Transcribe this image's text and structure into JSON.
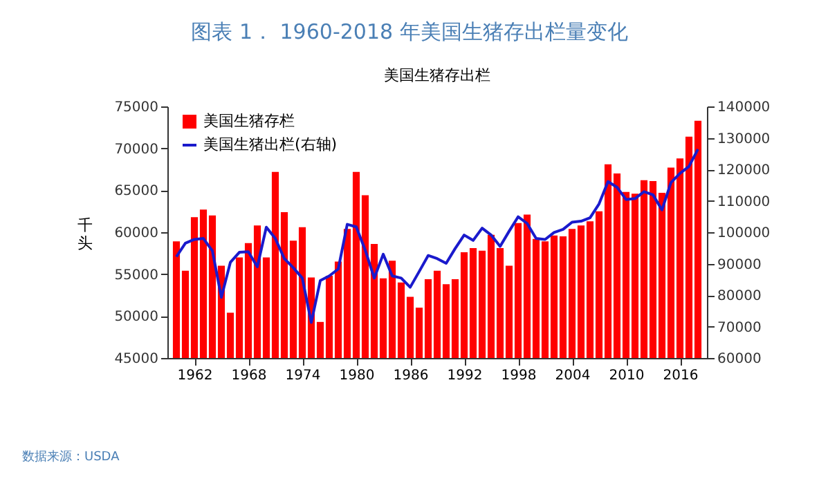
{
  "chart_data": {
    "type": "bar",
    "title": "图表 1． 1960-2018 年美国生猪存出栏量变化",
    "subtitle": "美国生猪存出栏",
    "ylabel": "千头",
    "annotations": [
      "数据来源：USDA"
    ],
    "x": [
      1960,
      1961,
      1962,
      1963,
      1964,
      1965,
      1966,
      1967,
      1968,
      1969,
      1970,
      1971,
      1972,
      1973,
      1974,
      1975,
      1976,
      1977,
      1978,
      1979,
      1980,
      1981,
      1982,
      1983,
      1984,
      1985,
      1986,
      1987,
      1988,
      1989,
      1990,
      1991,
      1992,
      1993,
      1994,
      1995,
      1996,
      1997,
      1998,
      1999,
      2000,
      2001,
      2002,
      2003,
      2004,
      2005,
      2006,
      2007,
      2008,
      2009,
      2010,
      2011,
      2012,
      2013,
      2014,
      2015,
      2016,
      2017,
      2018
    ],
    "series": [
      {
        "name": "美国生猪存栏",
        "color": "#ff0000",
        "values": [
          58900,
          55400,
          61800,
          62700,
          62000,
          56000,
          50400,
          57000,
          58700,
          60800,
          57000,
          67200,
          62400,
          59000,
          60600,
          54600,
          49300,
          54800,
          56500,
          60400,
          67200,
          64400,
          58600,
          54500,
          56600,
          54000,
          52300,
          51000,
          54400,
          55400,
          53800,
          54400,
          57600,
          58100,
          57800,
          59700,
          58100,
          56000,
          61100,
          62100,
          59200,
          58900,
          59600,
          59500,
          60400,
          60800,
          61300,
          62500,
          68100,
          67000,
          64800,
          64600,
          66200,
          66100,
          64700,
          67700,
          68800,
          71400,
          73300
        ]
      },
      {
        "name": "美国生猪出栏(右轴)",
        "type": "line",
        "axis": "y2",
        "color": "#1a1acc",
        "values": [
          92200,
          96500,
          97700,
          98000,
          94100,
          79300,
          90400,
          93600,
          93800,
          89000,
          101600,
          98000,
          91600,
          88700,
          85400,
          71300,
          84600,
          86100,
          88300,
          102500,
          101700,
          94300,
          85400,
          93000,
          86100,
          85400,
          82500,
          87500,
          92600,
          91600,
          90100,
          94800,
          99100,
          97400,
          101300,
          99100,
          95500,
          100300,
          104900,
          102800,
          98000,
          97700,
          99900,
          100900,
          103200,
          103500,
          104600,
          109000,
          116100,
          114300,
          110400,
          110700,
          112900,
          111900,
          107100,
          115800,
          118700,
          120900,
          126400
        ]
      }
    ],
    "xlim": [
      1959,
      2019
    ],
    "xticks": [
      1962,
      1968,
      1974,
      1980,
      1986,
      1992,
      1998,
      2004,
      2010,
      2016
    ],
    "ylim": [
      45000,
      75000
    ],
    "yticks": [
      45000,
      50000,
      55000,
      60000,
      65000,
      70000,
      75000
    ],
    "y2lim": [
      60000,
      140000
    ],
    "y2ticks": [
      60000,
      70000,
      80000,
      90000,
      100000,
      110000,
      120000,
      130000,
      140000
    ],
    "legend": "top left",
    "grid": false
  }
}
